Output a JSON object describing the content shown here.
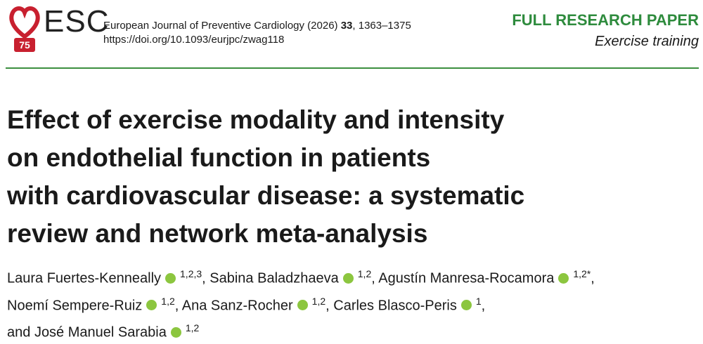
{
  "header": {
    "logo_text": "ESC",
    "logo_badge": "75",
    "citation_journal": "European Journal of Preventive Cardiology (2026) ",
    "citation_volume": "33",
    "citation_pages": ", 1363–1375",
    "doi": "https://doi.org/10.1093/eurjpc/zwag118",
    "paper_type": "FULL RESEARCH PAPER",
    "section": "Exercise training"
  },
  "title_lines": [
    "Effect of exercise modality and intensity",
    "on endothelial function in patients",
    "with cardiovascular disease: a systematic",
    "review and network meta-analysis"
  ],
  "author_lines": [
    [
      {
        "name": "Laura Fuertes-Kenneally",
        "sup": "1,2,3",
        "after": ","
      },
      {
        "name": "Sabina Baladzhaeva",
        "sup": "1,2",
        "after": ","
      },
      {
        "name": "Agustín Manresa-Rocamora",
        "sup": "1,2*",
        "after": ","
      }
    ],
    [
      {
        "name": "Noemí Sempere-Ruiz",
        "sup": "1,2",
        "after": ","
      },
      {
        "name": "Ana Sanz-Rocher",
        "sup": "1,2",
        "after": ","
      },
      {
        "name": "Carles Blasco-Peris",
        "sup": "1",
        "after": ","
      }
    ],
    [
      {
        "before": "and",
        "name": "José Manuel Sarabia",
        "sup": "1,2"
      }
    ]
  ]
}
